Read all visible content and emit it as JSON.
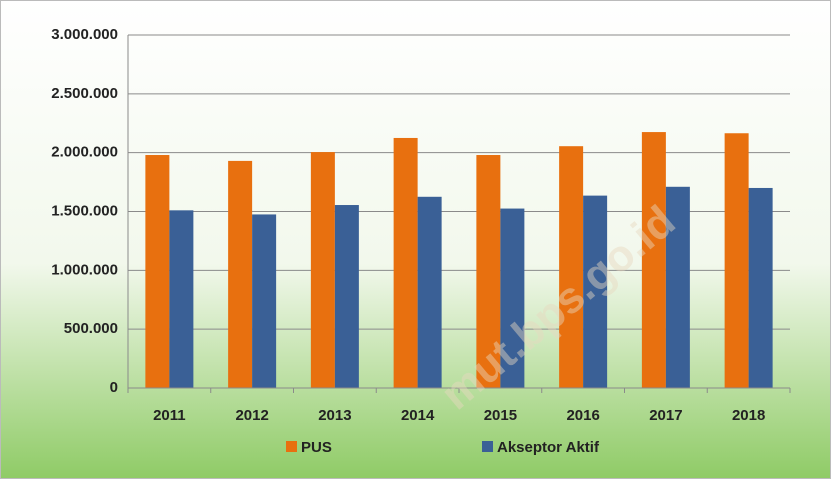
{
  "chart_data": {
    "type": "bar",
    "categories": [
      "2011",
      "2012",
      "2013",
      "2014",
      "2015",
      "2016",
      "2017",
      "2018"
    ],
    "series": [
      {
        "name": "PUS",
        "color": "#e8700f",
        "values": [
          1980000,
          1930000,
          2005000,
          2125000,
          1980000,
          2055000,
          2175000,
          2165000
        ]
      },
      {
        "name": "Akseptor Aktif",
        "color": "#3a6096",
        "values": [
          1510000,
          1475000,
          1555000,
          1625000,
          1525000,
          1635000,
          1710000,
          1700000
        ]
      }
    ],
    "ylim": [
      0,
      3000000
    ],
    "yticks": [
      0,
      {
        "value": 500000,
        "label": "500.000"
      },
      {
        "value": 1000000,
        "label": "1.000.000"
      },
      {
        "value": 1500000,
        "label": "1.500.000"
      },
      {
        "value": 2000000,
        "label": "2.000.000"
      },
      {
        "value": 2500000,
        "label": "2.500.000"
      },
      {
        "value": 3000000,
        "label": "3.000.000"
      }
    ],
    "grid": true,
    "legend": "bottom",
    "annotations": [
      "mut.bps.go.id"
    ]
  }
}
